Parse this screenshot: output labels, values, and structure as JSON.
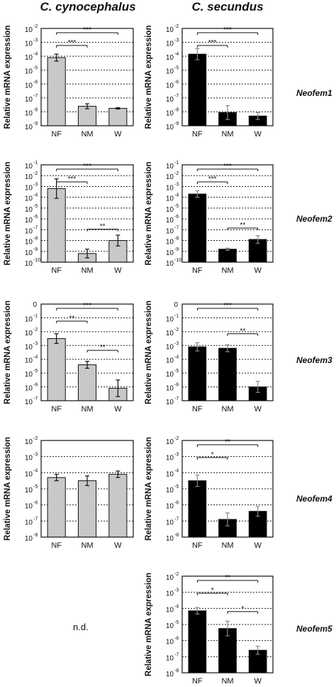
{
  "titles": {
    "left": "C. cynocephalus",
    "right": "C. secundus"
  },
  "genes": [
    "Neofem1",
    "Neofem2",
    "Neofem3",
    "Neofem4",
    "Neofem5"
  ],
  "nd_text": "n.d.",
  "colors": {
    "cynocephalus_bar": "#c8c8c8",
    "secundus_bar": "#000000",
    "axis": "#111111"
  },
  "chart_data": [
    {
      "type": "bar",
      "gene": "Neofem1",
      "species": "C. cynocephalus",
      "ylabel": "Relative mRNA expression",
      "log_scale": true,
      "ylim": [
        -9,
        -2
      ],
      "ytick_exponents": [
        -2,
        -3,
        -4,
        -5,
        -6,
        -7,
        -8,
        -9
      ],
      "categories": [
        "NF",
        "NM",
        "W"
      ],
      "log10_values": [
        -4.1,
        -7.6,
        -7.75
      ],
      "error_log10": [
        0.25,
        0.18,
        0.05
      ],
      "significance": [
        {
          "from": 0,
          "to": 2,
          "label": "***"
        },
        {
          "from": 0,
          "to": 1,
          "label": "***"
        }
      ]
    },
    {
      "type": "bar",
      "gene": "Neofem1",
      "species": "C. secundus",
      "ylabel": "Relative mRNA expression",
      "log_scale": true,
      "ylim": [
        -9,
        -2
      ],
      "ytick_exponents": [
        -2,
        -3,
        -4,
        -5,
        -6,
        -7,
        -8,
        -9
      ],
      "categories": [
        "NF",
        "NM",
        "W"
      ],
      "log10_values": [
        -3.85,
        -8.05,
        -8.3
      ],
      "error_log10": [
        0.4,
        0.5,
        0.25
      ],
      "significance": [
        {
          "from": 0,
          "to": 2,
          "label": "***"
        },
        {
          "from": 0,
          "to": 1,
          "label": "***"
        }
      ]
    },
    {
      "type": "bar",
      "gene": "Neofem2",
      "species": "C. cynocephalus",
      "ylabel": "Relative mRNA expression",
      "log_scale": true,
      "ylim": [
        -10,
        -1
      ],
      "ytick_exponents": [
        -1,
        -2,
        -3,
        -4,
        -5,
        -6,
        -7,
        -8,
        -9,
        -10
      ],
      "categories": [
        "NF",
        "NM",
        "W"
      ],
      "log10_values": [
        -3.2,
        -9.2,
        -8.0
      ],
      "error_log10": [
        0.9,
        0.4,
        0.5
      ],
      "significance": [
        {
          "from": 0,
          "to": 2,
          "label": "***"
        },
        {
          "from": 0,
          "to": 1,
          "label": "***"
        },
        {
          "from": 1,
          "to": 2,
          "label": "**"
        }
      ]
    },
    {
      "type": "bar",
      "gene": "Neofem2",
      "species": "C. secundus",
      "ylabel": "Relative mRNA expression",
      "log_scale": true,
      "ylim": [
        -10,
        -1
      ],
      "ytick_exponents": [
        -1,
        -2,
        -3,
        -4,
        -5,
        -6,
        -7,
        -8,
        -9,
        -10
      ],
      "categories": [
        "NF",
        "NM",
        "W"
      ],
      "log10_values": [
        -3.7,
        -8.8,
        -7.9
      ],
      "error_log10": [
        0.3,
        0.1,
        0.35
      ],
      "significance": [
        {
          "from": 0,
          "to": 2,
          "label": "***"
        },
        {
          "from": 0,
          "to": 1,
          "label": "***"
        },
        {
          "from": 1,
          "to": 2,
          "label": "**"
        }
      ]
    },
    {
      "type": "bar",
      "gene": "Neofem3",
      "species": "C. cynocephalus",
      "ylabel": "Relative mRNA expression",
      "log_scale": true,
      "ylim": [
        -7,
        0
      ],
      "ytick_exponents": [
        0,
        -1,
        -2,
        -3,
        -4,
        -5,
        -6,
        -7
      ],
      "categories": [
        "NF",
        "NM",
        "W"
      ],
      "log10_values": [
        -2.5,
        -4.4,
        -6.1
      ],
      "error_log10": [
        0.35,
        0.25,
        0.6
      ],
      "significance": [
        {
          "from": 0,
          "to": 2,
          "label": "***"
        },
        {
          "from": 0,
          "to": 1,
          "label": "**"
        },
        {
          "from": 1,
          "to": 2,
          "label": "**"
        }
      ]
    },
    {
      "type": "bar",
      "gene": "Neofem3",
      "species": "C. secundus",
      "ylabel": "Relative mRNA expression",
      "log_scale": true,
      "ylim": [
        -7,
        0
      ],
      "ytick_exponents": [
        0,
        -1,
        -2,
        -3,
        -4,
        -5,
        -6,
        -7
      ],
      "categories": [
        "NF",
        "NM",
        "W"
      ],
      "log10_values": [
        -3.1,
        -3.2,
        -6.0
      ],
      "error_log10": [
        0.3,
        0.25,
        0.4
      ],
      "significance": [
        {
          "from": 0,
          "to": 2,
          "label": "***"
        },
        {
          "from": 1,
          "to": 2,
          "label": "**"
        }
      ]
    },
    {
      "type": "bar",
      "gene": "Neofem4",
      "species": "C. cynocephalus",
      "ylabel": "Relative mRNA expression",
      "log_scale": true,
      "ylim": [
        -8,
        -2
      ],
      "ytick_exponents": [
        -2,
        -3,
        -4,
        -5,
        -6,
        -7,
        -8
      ],
      "categories": [
        "NF",
        "NM",
        "W"
      ],
      "log10_values": [
        -4.3,
        -4.5,
        -4.1
      ],
      "error_log10": [
        0.2,
        0.3,
        0.2
      ],
      "significance": []
    },
    {
      "type": "bar",
      "gene": "Neofem4",
      "species": "C. secundus",
      "ylabel": "Relative mRNA expression",
      "log_scale": true,
      "ylim": [
        -8,
        -2
      ],
      "ytick_exponents": [
        -2,
        -3,
        -4,
        -5,
        -6,
        -7,
        -8
      ],
      "categories": [
        "NF",
        "NM",
        "W"
      ],
      "log10_values": [
        -4.5,
        -6.9,
        -6.4
      ],
      "error_log10": [
        0.35,
        0.4,
        0.3
      ],
      "significance": [
        {
          "from": 0,
          "to": 2,
          "label": "**"
        },
        {
          "from": 0,
          "to": 1,
          "label": "*"
        }
      ]
    },
    {
      "type": "bar",
      "gene": "Neofem5",
      "species": "C. secundus",
      "ylabel": "Relative mRNA expression",
      "log_scale": true,
      "ylim": [
        -8,
        -2
      ],
      "ytick_exponents": [
        -2,
        -3,
        -4,
        -5,
        -6,
        -7,
        -8
      ],
      "categories": [
        "NF",
        "NM",
        "W"
      ],
      "log10_values": [
        -4.15,
        -5.25,
        -6.6
      ],
      "error_log10": [
        0.2,
        0.45,
        0.25
      ],
      "significance": [
        {
          "from": 0,
          "to": 2,
          "label": "**"
        },
        {
          "from": 0,
          "to": 1,
          "label": "*"
        },
        {
          "from": 1,
          "to": 2,
          "label": "*"
        }
      ]
    }
  ]
}
